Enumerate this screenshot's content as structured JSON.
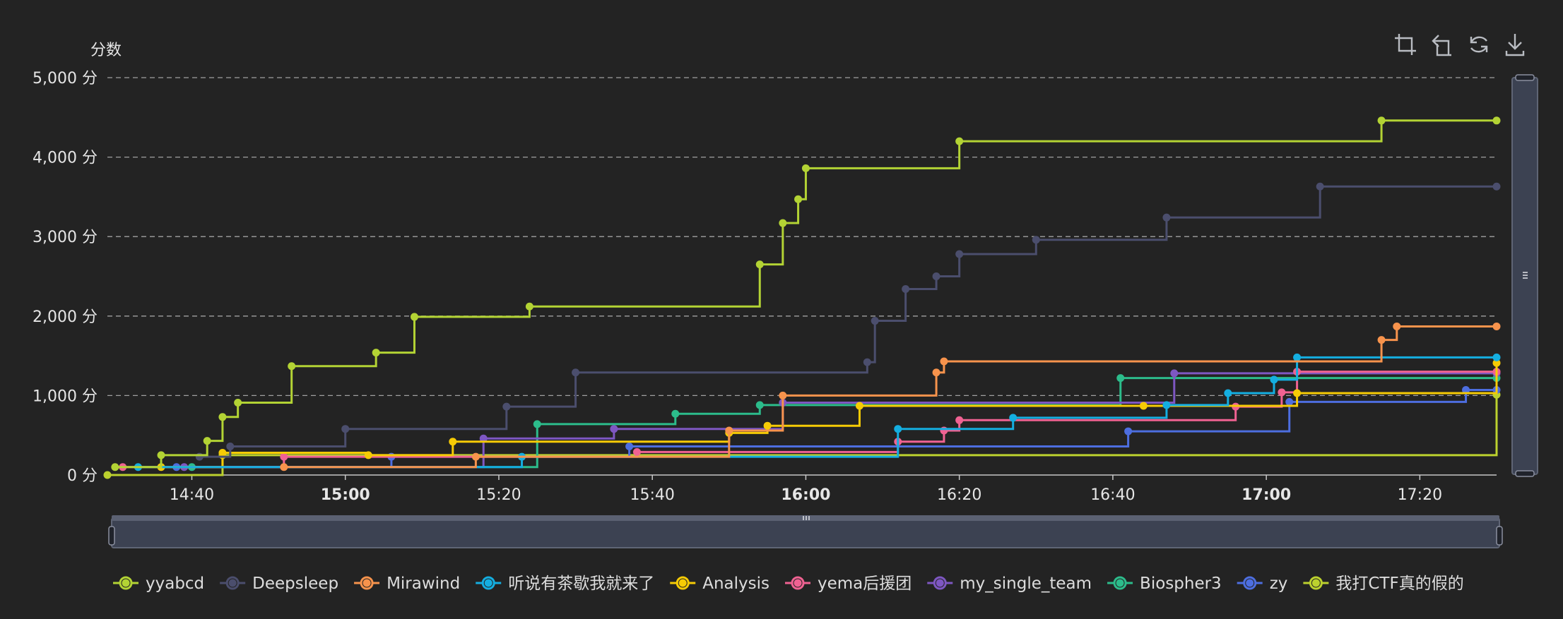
{
  "toolbar": {
    "icons": [
      "zoom-select-icon",
      "zoom-reset-icon",
      "restore-icon",
      "download-icon"
    ]
  },
  "chart_data": {
    "type": "line",
    "step": true,
    "ylabel": "分数",
    "ylim": [
      0,
      5000
    ],
    "yticks": [
      "0 分",
      "1,000 分",
      "2,000 分",
      "3,000 分",
      "4,000 分",
      "5,000 分"
    ],
    "y_tick_values": [
      0,
      1000,
      2000,
      3000,
      4000,
      5000
    ],
    "xlim": [
      "14:29",
      "17:30"
    ],
    "x_ticks": [
      {
        "label": "14:40",
        "minute": 880,
        "bold": false
      },
      {
        "label": "15:00",
        "minute": 900,
        "bold": true
      },
      {
        "label": "15:20",
        "minute": 920,
        "bold": false
      },
      {
        "label": "15:40",
        "minute": 940,
        "bold": false
      },
      {
        "label": "16:00",
        "minute": 960,
        "bold": true
      },
      {
        "label": "16:20",
        "minute": 980,
        "bold": false
      },
      {
        "label": "16:40",
        "minute": 1000,
        "bold": false
      },
      {
        "label": "17:00",
        "minute": 1020,
        "bold": true
      },
      {
        "label": "17:20",
        "minute": 1040,
        "bold": false
      }
    ],
    "grid": true,
    "legend_position": "bottom",
    "series": [
      {
        "name": "yyabcd",
        "color": "#b3d334",
        "points": [
          [
            "14:30",
            100
          ],
          [
            "14:36",
            250
          ],
          [
            "14:42",
            430
          ],
          [
            "14:44",
            730
          ],
          [
            "14:46",
            910
          ],
          [
            "14:53",
            1370
          ],
          [
            "15:04",
            1540
          ],
          [
            "15:09",
            1990
          ],
          [
            "15:24",
            2120
          ],
          [
            "15:54",
            2650
          ],
          [
            "15:57",
            3170
          ],
          [
            "15:59",
            3470
          ],
          [
            "16:00",
            3860
          ],
          [
            "16:20",
            4200
          ],
          [
            "17:15",
            4460
          ],
          [
            "17:33",
            4460
          ]
        ]
      },
      {
        "name": "Deepsleep",
        "color": "#4b4e6d",
        "points": [
          [
            "14:41",
            230
          ],
          [
            "14:45",
            360
          ],
          [
            "15:00",
            580
          ],
          [
            "15:21",
            860
          ],
          [
            "15:30",
            1290
          ],
          [
            "16:08",
            1420
          ],
          [
            "16:09",
            1940
          ],
          [
            "16:13",
            2340
          ],
          [
            "16:17",
            2500
          ],
          [
            "16:20",
            2780
          ],
          [
            "16:30",
            2960
          ],
          [
            "16:47",
            3240
          ],
          [
            "17:07",
            3630
          ],
          [
            "17:33",
            3630
          ]
        ]
      },
      {
        "name": "Mirawind",
        "color": "#f7934c",
        "points": [
          [
            "14:52",
            100
          ],
          [
            "15:17",
            230
          ],
          [
            "15:50",
            560
          ],
          [
            "15:57",
            1000
          ],
          [
            "16:17",
            1290
          ],
          [
            "16:18",
            1430
          ],
          [
            "17:15",
            1700
          ],
          [
            "17:17",
            1870
          ],
          [
            "17:33",
            1870
          ]
        ]
      },
      {
        "name": "听说有茶歇我就来了",
        "color": "#14aee0",
        "points": [
          [
            "14:33",
            100
          ],
          [
            "15:23",
            230
          ],
          [
            "16:12",
            580
          ],
          [
            "16:27",
            720
          ],
          [
            "16:47",
            880
          ],
          [
            "16:55",
            1030
          ],
          [
            "17:01",
            1200
          ],
          [
            "17:04",
            1480
          ],
          [
            "17:33",
            1480
          ]
        ]
      },
      {
        "name": "Analysis",
        "color": "#f6cb05",
        "points": [
          [
            "14:36",
            100
          ],
          [
            "14:44",
            280
          ],
          [
            "15:03",
            250
          ],
          [
            "15:14",
            420
          ],
          [
            "15:50",
            530
          ],
          [
            "15:55",
            620
          ],
          [
            "16:07",
            870
          ],
          [
            "16:44",
            870
          ],
          [
            "17:04",
            1030
          ],
          [
            "17:33",
            1410
          ]
        ]
      },
      {
        "name": "yema后援团",
        "color": "#f06292",
        "points": [
          [
            "14:31",
            100
          ],
          [
            "14:52",
            230
          ],
          [
            "15:38",
            290
          ],
          [
            "16:12",
            420
          ],
          [
            "16:18",
            560
          ],
          [
            "16:20",
            690
          ],
          [
            "16:56",
            860
          ],
          [
            "17:02",
            1040
          ],
          [
            "17:04",
            1300
          ],
          [
            "17:33",
            1300
          ]
        ]
      },
      {
        "name": "my_single_team",
        "color": "#7e57c2",
        "points": [
          [
            "14:39",
            100
          ],
          [
            "15:18",
            460
          ],
          [
            "15:35",
            580
          ],
          [
            "15:57",
            910
          ],
          [
            "16:48",
            1280
          ],
          [
            "17:33",
            1280
          ]
        ]
      },
      {
        "name": "Biospher3",
        "color": "#2cbc8b",
        "points": [
          [
            "14:40",
            100
          ],
          [
            "15:25",
            640
          ],
          [
            "15:43",
            770
          ],
          [
            "15:54",
            880
          ],
          [
            "16:41",
            1220
          ],
          [
            "17:33",
            1220
          ]
        ]
      },
      {
        "name": "zy",
        "color": "#4d6ee0",
        "points": [
          [
            "14:38",
            100
          ],
          [
            "15:06",
            230
          ],
          [
            "15:37",
            360
          ],
          [
            "16:42",
            550
          ],
          [
            "17:03",
            920
          ],
          [
            "17:26",
            1070
          ],
          [
            "17:33",
            1070
          ]
        ]
      },
      {
        "name": "我打CTF真的假的",
        "color": "#bcd12e",
        "points": [
          [
            "14:29",
            0
          ],
          [
            "14:44",
            250
          ],
          [
            "17:33",
            1010
          ]
        ]
      }
    ]
  }
}
